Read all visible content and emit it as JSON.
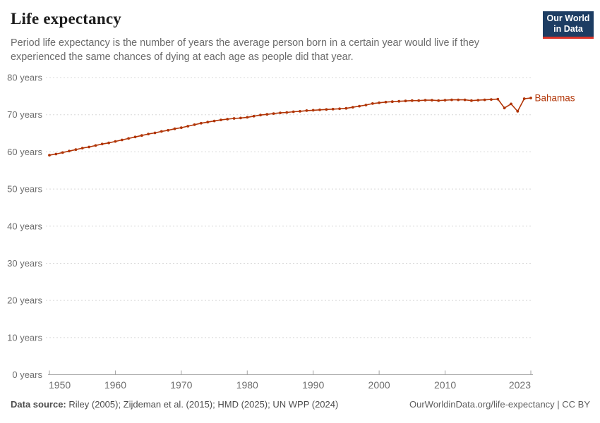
{
  "header": {
    "title": "Life expectancy",
    "subtitle": "Period life expectancy is the number of years the average person born in a certain year would live if they experienced the same chances of dying at each age as people did that year.",
    "logo_line1": "Our World",
    "logo_line2": "in Data"
  },
  "chart_data": {
    "type": "line",
    "title": "Life expectancy",
    "entity_label": "Bahamas",
    "x": [
      1950,
      1951,
      1952,
      1953,
      1954,
      1955,
      1956,
      1957,
      1958,
      1959,
      1960,
      1961,
      1962,
      1963,
      1964,
      1965,
      1966,
      1967,
      1968,
      1969,
      1970,
      1971,
      1972,
      1973,
      1974,
      1975,
      1976,
      1977,
      1978,
      1979,
      1980,
      1981,
      1982,
      1983,
      1984,
      1985,
      1986,
      1987,
      1988,
      1989,
      1990,
      1991,
      1992,
      1993,
      1994,
      1995,
      1996,
      1997,
      1998,
      1999,
      2000,
      2001,
      2002,
      2003,
      2004,
      2005,
      2006,
      2007,
      2008,
      2009,
      2010,
      2011,
      2012,
      2013,
      2014,
      2015,
      2016,
      2017,
      2018,
      2019,
      2020,
      2021,
      2022,
      2023
    ],
    "series": [
      {
        "name": "Bahamas",
        "color": "#b13507",
        "values": [
          59.1,
          59.4,
          59.8,
          60.2,
          60.6,
          61.0,
          61.3,
          61.7,
          62.1,
          62.4,
          62.8,
          63.2,
          63.6,
          64.0,
          64.4,
          64.8,
          65.1,
          65.5,
          65.8,
          66.2,
          66.5,
          66.9,
          67.3,
          67.7,
          68.0,
          68.3,
          68.6,
          68.8,
          69.0,
          69.1,
          69.3,
          69.6,
          69.9,
          70.1,
          70.3,
          70.5,
          70.6,
          70.8,
          70.9,
          71.1,
          71.2,
          71.3,
          71.4,
          71.5,
          71.6,
          71.7,
          72.0,
          72.3,
          72.6,
          73.0,
          73.2,
          73.4,
          73.5,
          73.6,
          73.7,
          73.8,
          73.8,
          73.9,
          73.9,
          73.8,
          73.9,
          74.0,
          74.0,
          74.0,
          73.8,
          73.9,
          74.0,
          74.1,
          74.2,
          71.8,
          72.9,
          70.9,
          74.3,
          74.5
        ]
      }
    ],
    "xlim": [
      1950,
      2023
    ],
    "ylim": [
      0,
      80
    ],
    "x_ticks": [
      1950,
      1960,
      1970,
      1980,
      1990,
      2000,
      2010,
      2023
    ],
    "y_ticks": [
      0,
      10,
      20,
      30,
      40,
      50,
      60,
      70,
      80
    ],
    "y_tick_suffix": " years",
    "grid": "horizontal-dashed",
    "legend_position": "end-of-line-label"
  },
  "footer": {
    "source_label": "Data source:",
    "source_text": " Riley (2005); Zijdeman et al. (2015); HMD (2025); UN WPP (2024)",
    "link_text": "OurWorldinData.org/life-expectancy | CC BY"
  },
  "colors": {
    "accent_line": "#b13507",
    "logo_bg": "#1d3d63",
    "logo_underline": "#dc352a",
    "gridline": "#d8d8d8",
    "axis": "#a3a3a3",
    "tick_label": "#6e6e6e"
  }
}
